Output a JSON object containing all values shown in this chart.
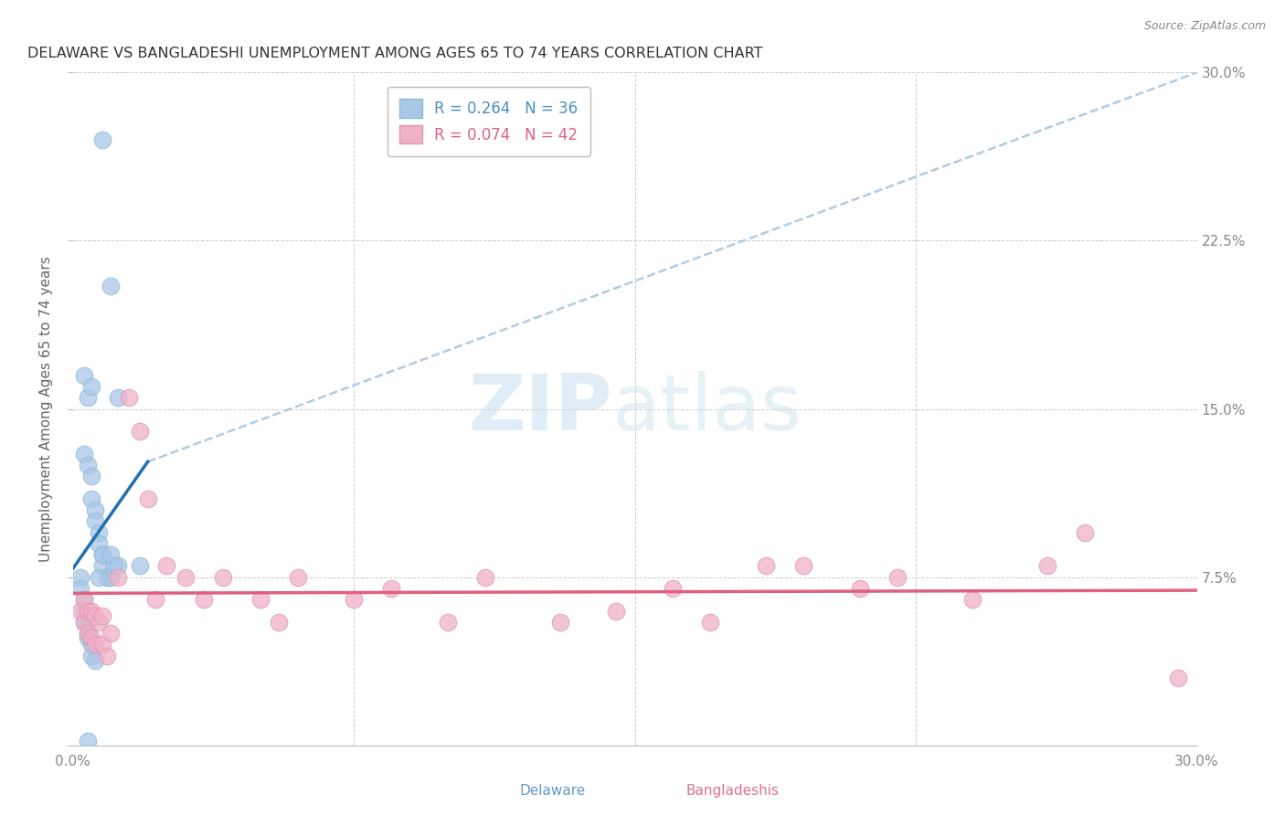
{
  "title": "DELAWARE VS BANGLADESHI UNEMPLOYMENT AMONG AGES 65 TO 74 YEARS CORRELATION CHART",
  "source": "Source: ZipAtlas.com",
  "ylabel": "Unemployment Among Ages 65 to 74 years",
  "xlim": [
    0,
    0.3
  ],
  "ylim": [
    0,
    0.3
  ],
  "delaware_R": 0.264,
  "delaware_N": 36,
  "bangladeshi_R": 0.074,
  "bangladeshi_N": 42,
  "delaware_color": "#a8c8e8",
  "delaware_edge_color": "#90b8d8",
  "delaware_line_color": "#2070b4",
  "delaware_dash_color": "#b0cce0",
  "bangladeshi_color": "#f0b0c8",
  "bangladeshi_edge_color": "#e098b0",
  "bangladeshi_line_color": "#e06080",
  "background_color": "#ffffff",
  "grid_color": "#cccccc",
  "watermark_zip": "ZIP",
  "watermark_atlas": "atlas",
  "tick_color": "#888888",
  "title_color": "#333333",
  "source_color": "#888888",
  "delaware_x": [
    0.008,
    0.01,
    0.012,
    0.003,
    0.004,
    0.005,
    0.003,
    0.004,
    0.005,
    0.005,
    0.006,
    0.006,
    0.007,
    0.007,
    0.008,
    0.008,
    0.009,
    0.01,
    0.011,
    0.002,
    0.002,
    0.003,
    0.003,
    0.003,
    0.004,
    0.004,
    0.004,
    0.005,
    0.005,
    0.006,
    0.007,
    0.008,
    0.01,
    0.012,
    0.018,
    0.004
  ],
  "delaware_y": [
    0.27,
    0.205,
    0.155,
    0.165,
    0.155,
    0.16,
    0.13,
    0.125,
    0.12,
    0.11,
    0.105,
    0.1,
    0.095,
    0.09,
    0.085,
    0.08,
    0.075,
    0.075,
    0.08,
    0.075,
    0.07,
    0.065,
    0.06,
    0.055,
    0.055,
    0.05,
    0.048,
    0.045,
    0.04,
    0.038,
    0.075,
    0.085,
    0.085,
    0.08,
    0.08,
    0.002
  ],
  "bangladeshi_x": [
    0.002,
    0.003,
    0.003,
    0.004,
    0.004,
    0.005,
    0.005,
    0.006,
    0.006,
    0.007,
    0.008,
    0.008,
    0.009,
    0.01,
    0.012,
    0.015,
    0.018,
    0.02,
    0.022,
    0.025,
    0.03,
    0.035,
    0.04,
    0.05,
    0.055,
    0.06,
    0.075,
    0.085,
    0.1,
    0.11,
    0.13,
    0.145,
    0.16,
    0.17,
    0.185,
    0.195,
    0.21,
    0.22,
    0.24,
    0.26,
    0.27,
    0.295
  ],
  "bangladeshi_y": [
    0.06,
    0.065,
    0.055,
    0.06,
    0.05,
    0.06,
    0.048,
    0.058,
    0.045,
    0.055,
    0.058,
    0.045,
    0.04,
    0.05,
    0.075,
    0.155,
    0.14,
    0.11,
    0.065,
    0.08,
    0.075,
    0.065,
    0.075,
    0.065,
    0.055,
    0.075,
    0.065,
    0.07,
    0.055,
    0.075,
    0.055,
    0.06,
    0.07,
    0.055,
    0.08,
    0.08,
    0.07,
    0.075,
    0.065,
    0.08,
    0.095,
    0.03
  ],
  "legend_R_del_color": "#4a90c4",
  "legend_N_del_color": "#2e6da4",
  "legend_R_ban_color": "#e06080",
  "legend_N_ban_color": "#c04060"
}
